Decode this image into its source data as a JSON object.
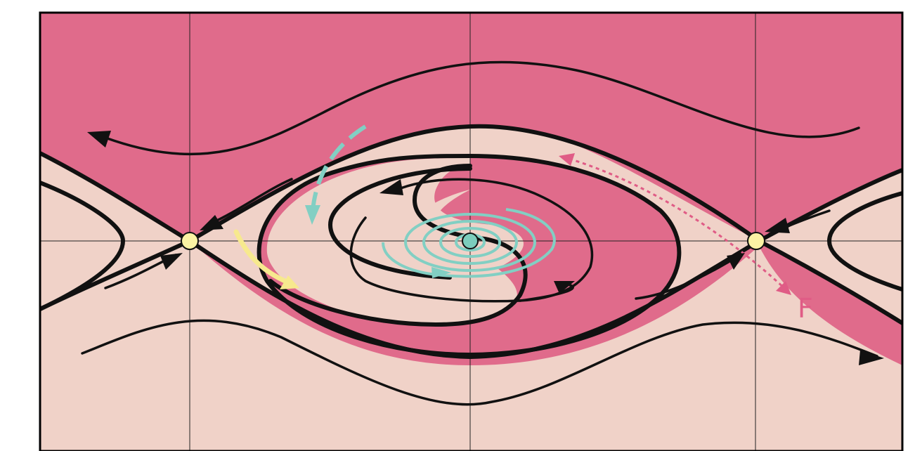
{
  "colors": {
    "dark_basin": "#e06b8b",
    "light_basin": "#f0d2c8",
    "curve": "#111111",
    "saddle_point": "#fbf3a4",
    "focus_point": "#7ccdbd",
    "cyan_spiral": "#82cfc3",
    "yellow_arrow": "#f7e98e",
    "pink_dotted": "#e05c86",
    "grid": "#222222",
    "border": "#000000"
  },
  "labels": {
    "f_label": "F"
  },
  "icons": {
    "saddle": "circle",
    "focus": "circle",
    "arrowheads": "triangle-arrowhead"
  }
}
